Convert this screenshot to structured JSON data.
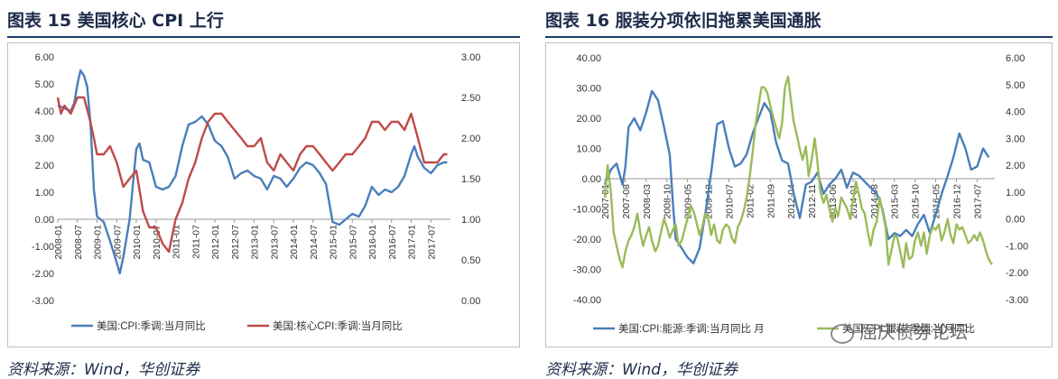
{
  "left": {
    "title": "图表 15   美国核心 CPI 上行",
    "source": "资料来源：Wind，华创证券"
  },
  "right": {
    "title": "图表 16 服装分项依旧拖累美国通胀",
    "source": "资料来源：Wind，华创证券",
    "watermark": "屈庆债券论坛"
  },
  "chart_data": [
    {
      "type": "line",
      "title": "",
      "x_ticks": [
        "2008-01",
        "2008-07",
        "2009-01",
        "2009-07",
        "2010-01",
        "2010-07",
        "2011-01",
        "2011-07",
        "2012-01",
        "2012-07",
        "2013-01",
        "2013-07",
        "2014-01",
        "2014-07",
        "2015-01",
        "2015-07",
        "2016-01",
        "2016-07",
        "2017-01",
        "2017-07"
      ],
      "y_left_ticks": [
        "6.00",
        "5.00",
        "4.00",
        "3.00",
        "2.00",
        "1.00",
        "0.00",
        "-1.00",
        "-2.00",
        "-3.00"
      ],
      "y_right_ticks": [
        "3.00",
        "2.50",
        "2.00",
        "1.50",
        "1.00",
        "0.50",
        "0.00"
      ],
      "ylim_left": [
        -3,
        6
      ],
      "ylim_right": [
        0,
        3
      ],
      "legend": [
        "美国:CPI:季调:当月同比",
        "美国:核心CPI:季调:当月同比"
      ],
      "legend_position": "bottom",
      "colors": [
        "#4a7ebb",
        "#be4b48"
      ],
      "series": [
        {
          "name": "美国:CPI:季调:当月同比",
          "axis": "left",
          "x": [
            2008.0,
            2008.17,
            2008.33,
            2008.42,
            2008.5,
            2008.58,
            2008.67,
            2008.75,
            2008.83,
            2008.92,
            2009.0,
            2009.17,
            2009.33,
            2009.5,
            2009.58,
            2009.67,
            2009.83,
            2010.0,
            2010.08,
            2010.17,
            2010.33,
            2010.5,
            2010.67,
            2010.83,
            2011.0,
            2011.17,
            2011.33,
            2011.5,
            2011.67,
            2011.83,
            2012.0,
            2012.17,
            2012.33,
            2012.5,
            2012.67,
            2012.83,
            2013.0,
            2013.17,
            2013.33,
            2013.5,
            2013.67,
            2013.83,
            2014.0,
            2014.17,
            2014.33,
            2014.5,
            2014.67,
            2014.83,
            2015.0,
            2015.17,
            2015.33,
            2015.5,
            2015.67,
            2015.83,
            2016.0,
            2016.17,
            2016.33,
            2016.5,
            2016.67,
            2016.83,
            2017.0,
            2017.08,
            2017.17,
            2017.33,
            2017.5,
            2017.67,
            2017.83,
            2017.92
          ],
          "values": [
            4.2,
            4.1,
            4.0,
            4.3,
            5.0,
            5.5,
            5.3,
            4.9,
            3.6,
            1.1,
            0.1,
            -0.1,
            -0.8,
            -1.6,
            -2.0,
            -1.4,
            0.0,
            2.6,
            2.8,
            2.2,
            2.1,
            1.2,
            1.1,
            1.2,
            1.6,
            2.7,
            3.5,
            3.6,
            3.8,
            3.5,
            2.9,
            2.7,
            2.3,
            1.5,
            1.7,
            1.8,
            1.6,
            1.5,
            1.1,
            1.6,
            1.5,
            1.2,
            1.5,
            1.9,
            2.1,
            2.0,
            1.7,
            1.3,
            -0.1,
            -0.2,
            0.0,
            0.2,
            0.1,
            0.5,
            1.2,
            0.9,
            1.1,
            1.0,
            1.2,
            1.6,
            2.4,
            2.7,
            2.3,
            1.9,
            1.7,
            2.0,
            2.1,
            2.1
          ]
        },
        {
          "name": "美国:核心CPI:季调:当月同比",
          "axis": "right",
          "x": [
            2008.0,
            2008.08,
            2008.17,
            2008.33,
            2008.5,
            2008.67,
            2008.83,
            2008.92,
            2009.0,
            2009.17,
            2009.33,
            2009.5,
            2009.67,
            2009.83,
            2010.0,
            2010.17,
            2010.33,
            2010.5,
            2010.67,
            2010.83,
            2011.0,
            2011.17,
            2011.33,
            2011.5,
            2011.67,
            2011.83,
            2012.0,
            2012.17,
            2012.33,
            2012.5,
            2012.67,
            2012.83,
            2013.0,
            2013.17,
            2013.33,
            2013.5,
            2013.67,
            2013.83,
            2014.0,
            2014.17,
            2014.33,
            2014.5,
            2014.67,
            2014.83,
            2015.0,
            2015.17,
            2015.33,
            2015.5,
            2015.67,
            2015.83,
            2016.0,
            2016.17,
            2016.33,
            2016.5,
            2016.67,
            2016.83,
            2017.0,
            2017.17,
            2017.33,
            2017.5,
            2017.67,
            2017.83,
            2017.92
          ],
          "values": [
            2.5,
            2.3,
            2.4,
            2.3,
            2.5,
            2.5,
            2.2,
            2.0,
            1.8,
            1.8,
            1.9,
            1.7,
            1.4,
            1.5,
            1.6,
            1.1,
            0.9,
            0.9,
            0.7,
            0.6,
            1.0,
            1.2,
            1.5,
            1.7,
            2.0,
            2.2,
            2.3,
            2.3,
            2.2,
            2.1,
            2.0,
            1.9,
            1.9,
            2.0,
            1.7,
            1.6,
            1.8,
            1.7,
            1.6,
            1.8,
            1.9,
            1.9,
            1.8,
            1.7,
            1.6,
            1.7,
            1.8,
            1.8,
            1.9,
            2.0,
            2.2,
            2.2,
            2.1,
            2.2,
            2.2,
            2.1,
            2.3,
            2.0,
            1.7,
            1.7,
            1.7,
            1.8,
            1.8
          ]
        }
      ]
    },
    {
      "type": "line",
      "title": "",
      "x_ticks": [
        "2007-01",
        "2007-08",
        "2008-03",
        "2008-10",
        "2009-05",
        "2009-12",
        "2010-07",
        "2011-02",
        "2011-09",
        "2012-04",
        "2012-11",
        "2013-06",
        "2014-01",
        "2014-08",
        "2015-03",
        "2015-10",
        "2016-05",
        "2016-12",
        "2017-07"
      ],
      "y_left_ticks": [
        "40.00",
        "30.00",
        "20.00",
        "10.00",
        "0.00",
        "-10.00",
        "-20.00",
        "-30.00",
        "-40.00"
      ],
      "y_right_ticks": [
        "6.00",
        "5.00",
        "4.00",
        "3.00",
        "2.00",
        "1.00",
        "0.00",
        "-1.00",
        "-2.00",
        "-3.00"
      ],
      "ylim_left": [
        -40,
        40
      ],
      "ylim_right": [
        -3,
        6
      ],
      "legend": [
        "美国:CPI:能源:季调:当月同比 月",
        "美国:CPI:服装:季调:当月同比"
      ],
      "legend_position": "bottom",
      "colors": [
        "#4a7ebb",
        "#9bbb59"
      ],
      "series": [
        {
          "name": "美国:CPI:能源:季调:当月同比 月",
          "axis": "left",
          "x": [
            2007.0,
            2007.17,
            2007.33,
            2007.5,
            2007.58,
            2007.67,
            2007.83,
            2008.0,
            2008.17,
            2008.33,
            2008.5,
            2008.67,
            2008.83,
            2008.92,
            2009.0,
            2009.17,
            2009.33,
            2009.5,
            2009.67,
            2009.83,
            2010.0,
            2010.17,
            2010.33,
            2010.5,
            2010.67,
            2010.83,
            2011.0,
            2011.17,
            2011.33,
            2011.5,
            2011.67,
            2011.83,
            2012.0,
            2012.17,
            2012.33,
            2012.5,
            2012.67,
            2012.83,
            2013.0,
            2013.17,
            2013.33,
            2013.5,
            2013.67,
            2013.83,
            2014.0,
            2014.17,
            2014.33,
            2014.5,
            2014.67,
            2014.83,
            2015.0,
            2015.17,
            2015.33,
            2015.5,
            2015.67,
            2015.83,
            2016.0,
            2016.17,
            2016.33,
            2016.5,
            2016.67,
            2016.83,
            2017.0,
            2017.17,
            2017.33,
            2017.5,
            2017.67,
            2017.83
          ],
          "values": [
            -2,
            3,
            5,
            -2,
            4,
            17,
            20,
            16,
            22,
            29,
            26,
            17,
            8,
            -8,
            -20,
            -23,
            -26,
            -28,
            -23,
            -12,
            2,
            18,
            19,
            10,
            4,
            5,
            8,
            15,
            20,
            25,
            22,
            12,
            6,
            5,
            -5,
            -13,
            -2,
            -1,
            2,
            -5,
            -2,
            0,
            3,
            -3,
            2,
            1,
            -1,
            -3,
            -5,
            -10,
            -20,
            -18,
            -19,
            -17,
            -19,
            -15,
            -12,
            -18,
            -12,
            -5,
            1,
            7,
            15,
            10,
            3,
            4,
            10,
            7
          ]
        },
        {
          "name": "美国:CPI:服装:季调:当月同比",
          "axis": "right",
          "x": [
            2007.0,
            2007.08,
            2007.17,
            2007.25,
            2007.33,
            2007.42,
            2007.5,
            2007.58,
            2007.67,
            2007.75,
            2007.83,
            2007.92,
            2008.0,
            2008.08,
            2008.17,
            2008.25,
            2008.33,
            2008.42,
            2008.5,
            2008.58,
            2008.67,
            2008.75,
            2008.83,
            2008.92,
            2009.0,
            2009.08,
            2009.17,
            2009.25,
            2009.33,
            2009.42,
            2009.5,
            2009.58,
            2009.67,
            2009.75,
            2009.83,
            2009.92,
            2010.0,
            2010.08,
            2010.17,
            2010.25,
            2010.33,
            2010.42,
            2010.5,
            2010.58,
            2010.67,
            2010.75,
            2010.83,
            2010.92,
            2011.0,
            2011.08,
            2011.17,
            2011.25,
            2011.33,
            2011.42,
            2011.5,
            2011.58,
            2011.67,
            2011.75,
            2011.83,
            2011.92,
            2012.0,
            2012.08,
            2012.17,
            2012.25,
            2012.33,
            2012.42,
            2012.5,
            2012.58,
            2012.67,
            2012.75,
            2012.83,
            2012.92,
            2013.0,
            2013.08,
            2013.17,
            2013.25,
            2013.33,
            2013.42,
            2013.5,
            2013.58,
            2013.67,
            2013.75,
            2013.83,
            2013.92,
            2014.0,
            2014.08,
            2014.17,
            2014.25,
            2014.33,
            2014.42,
            2014.5,
            2014.58,
            2014.67,
            2014.75,
            2014.83,
            2014.92,
            2015.0,
            2015.08,
            2015.17,
            2015.25,
            2015.33,
            2015.42,
            2015.5,
            2015.58,
            2015.67,
            2015.75,
            2015.83,
            2015.92,
            2016.0,
            2016.08,
            2016.17,
            2016.25,
            2016.33,
            2016.42,
            2016.5,
            2016.58,
            2016.67,
            2016.75,
            2016.83,
            2016.92,
            2017.0,
            2017.08,
            2017.17,
            2017.25,
            2017.33,
            2017.42,
            2017.5,
            2017.58,
            2017.67,
            2017.75,
            2017.83,
            2017.92
          ],
          "values": [
            0.8,
            2.0,
            1.0,
            -0.5,
            -1.0,
            -1.5,
            -1.8,
            -1.2,
            -0.8,
            -0.6,
            -0.3,
            0.2,
            -0.5,
            -1.0,
            -0.6,
            -0.3,
            -0.8,
            -1.2,
            -1.0,
            -0.5,
            0.0,
            -0.3,
            -0.7,
            -0.4,
            -0.2,
            -1.0,
            -0.8,
            -0.4,
            0.0,
            0.5,
            0.3,
            -0.1,
            -0.6,
            -0.3,
            0.2,
            0.0,
            -0.6,
            -0.2,
            -0.8,
            -0.9,
            -0.4,
            -0.2,
            -0.3,
            -0.7,
            -0.9,
            -0.3,
            -0.1,
            0.3,
            0.8,
            1.5,
            2.5,
            3.5,
            4.2,
            4.9,
            4.9,
            4.7,
            4.2,
            3.8,
            3.4,
            3.0,
            3.6,
            4.9,
            5.3,
            4.4,
            3.6,
            3.1,
            2.6,
            2.2,
            2.7,
            1.6,
            2.2,
            3.0,
            2.1,
            1.0,
            0.6,
            0.9,
            0.4,
            -0.1,
            0.4,
            0.1,
            0.8,
            0.6,
            0.4,
            0.0,
            0.7,
            1.4,
            0.9,
            0.4,
            0.2,
            -0.5,
            -1.0,
            -0.4,
            -0.1,
            0.8,
            0.3,
            -0.3,
            -1.7,
            -1.2,
            -0.6,
            -0.7,
            -1.2,
            -1.8,
            -0.9,
            -1.5,
            -1.4,
            -0.8,
            -0.5,
            -1.0,
            -0.5,
            -1.3,
            -0.6,
            -0.3,
            -0.4,
            -0.2,
            -0.8,
            -0.5,
            0.0,
            -0.6,
            -0.9,
            -0.2,
            -0.4,
            -0.3,
            -0.6,
            -0.9,
            -0.8,
            -0.6,
            -0.8,
            -0.5,
            -0.8,
            -1.2,
            -1.5,
            -1.7
          ]
        }
      ]
    }
  ]
}
